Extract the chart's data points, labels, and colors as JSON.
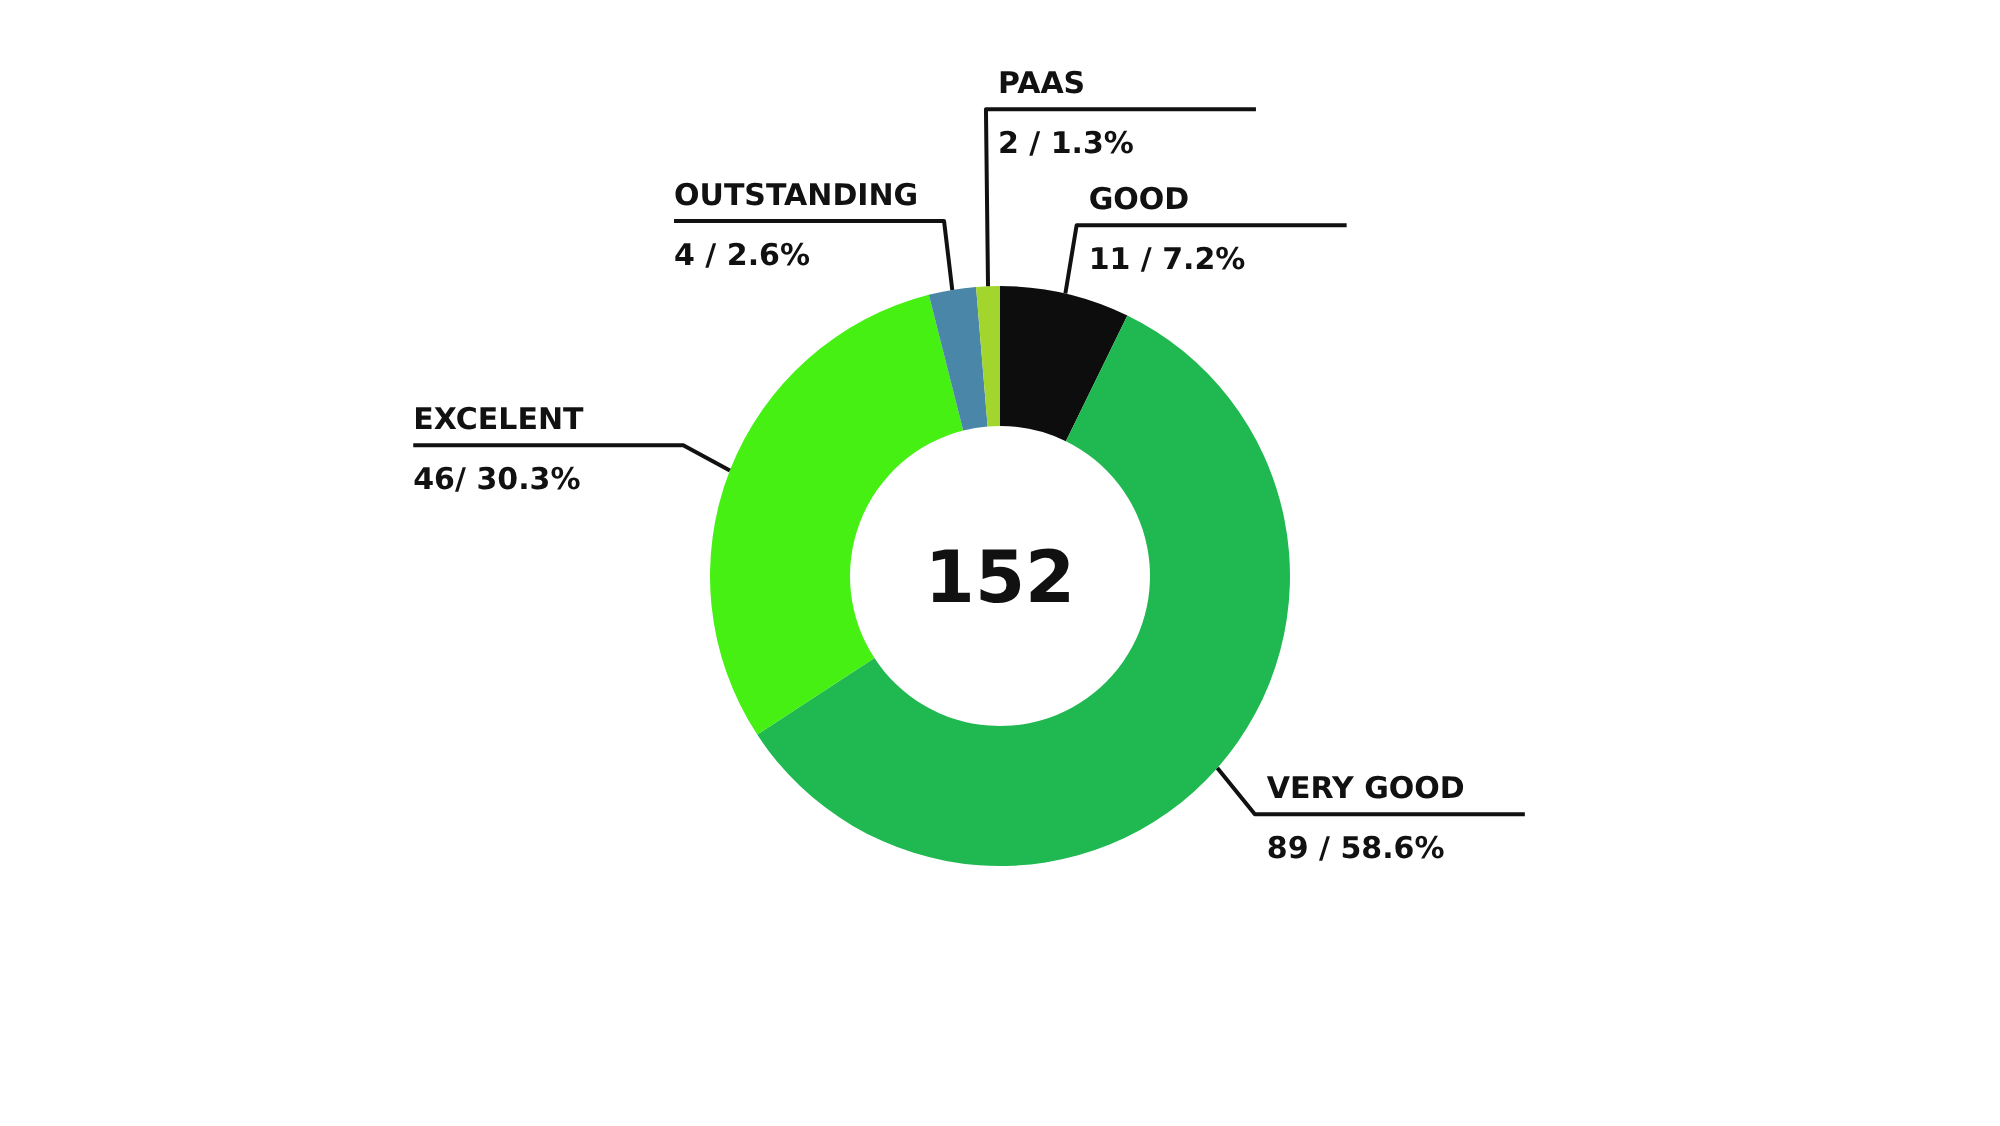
{
  "chart_data": {
    "type": "donut",
    "categories": [
      "GOOD",
      "VERY GOOD",
      "EXCELENT",
      "OUTSTANDING",
      "PAAS"
    ],
    "values": [
      11,
      89,
      46,
      4,
      2
    ],
    "colors": [
      "#0d0d0d",
      "#20b850",
      "#45f012",
      "#4a86a8",
      "#a3d62c"
    ],
    "value_labels": [
      "11 / 7.2%",
      "89 / 58.6%",
      "46/ 30.3%",
      "4 / 2.6%",
      "2 / 1.3%"
    ],
    "annotations": [
      "152"
    ]
  }
}
